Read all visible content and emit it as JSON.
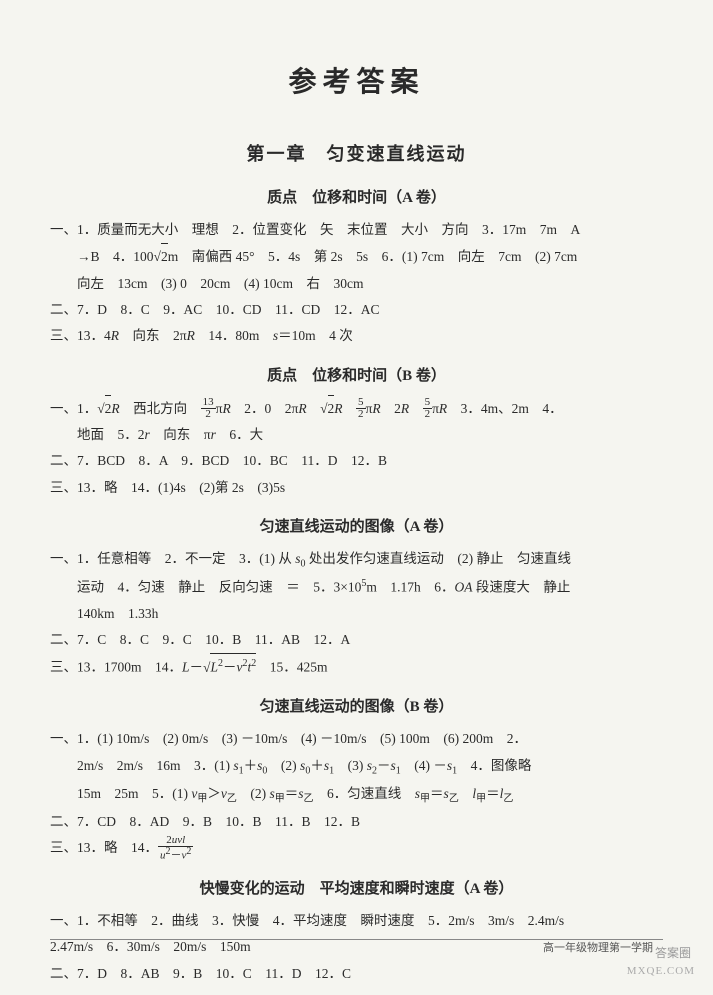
{
  "page_title": "参考答案",
  "chapter_title": "第一章　匀变速直线运动",
  "sections": [
    {
      "title": "质点　位移和时间（A 卷）",
      "lines": [
        "一、1．质量而无大小　理想　2．位置变化　矢　末位置　大小　方向　3．17m　7m　A",
        "→B　4．100√2m　南偏西 45°　5．4s　第 2s　5s　6．(1) 7cm　向左　7cm　(2) 7cm",
        "向左　13cm　(3) 0　20cm　(4) 10cm　右　30cm",
        "二、7．D　8．C　9．AC　10．CD　11．CD　12．AC",
        "三、13．4R　向东　2πR　14．80m　s＝10m　4 次"
      ]
    },
    {
      "title": "质点　位移和时间（B 卷）",
      "lines": [
        "一、1．√2R　西北方向　(13/2)πR　2．0　2πR　√2R　(5/2)πR　2R　(5/2)πR　3．4m、2m　4．",
        "地面　5．2r　向东　πr　6．大",
        "二、7．BCD　8．A　9．BCD　10．BC　11．D　12．B",
        "三、13．略　14．(1)4s　(2)第 2s　(3)5s"
      ]
    },
    {
      "title": "匀速直线运动的图像（A 卷）",
      "lines": [
        "一、1．任意相等　2．不一定　3．(1) 从 s₀ 处出发作匀速直线运动　(2) 静止　匀速直线",
        "运动　4．匀速　静止　反向匀速　＝　5．3×10⁵m　1.17h　6．OA 段速度大　静止",
        "140km　1.33h",
        "二、7．C　8．C　9．C　10．B　11．AB　12．A",
        "三、13．1700m　14．L－√(L²－v²t²)　15．425m"
      ]
    },
    {
      "title": "匀速直线运动的图像（B 卷）",
      "lines": [
        "一、1．(1) 10m/s　(2) 0m/s　(3) －10m/s　(4) －10m/s　(5) 100m　(6) 200m　2．",
        "2m/s　2m/s　16m　3．(1) s₁＋s₀　(2) s₀＋s₁　(3) s₂－s₁　(4) －s₁　4．图像略",
        "15m　25m　5．(1) v甲＞v乙　(2) s甲＝s乙　6．匀速直线　s甲＝s乙　l甲＝l乙",
        "二、7．CD　8．AD　9．B　10．B　11．B　12．B",
        "三、13．略　14．2uvl／(u²－v²)"
      ]
    },
    {
      "title": "快慢变化的运动　平均速度和瞬时速度（A 卷）",
      "lines": [
        "一、1．不相等　2．曲线　3．快慢　4．平均速度　瞬时速度　5．2m/s　3m/s　2.4m/s",
        "2.47m/s　6．30m/s　20m/s　150m",
        "二、7．D　8．AB　9．B　10．C　11．D　12．C"
      ]
    }
  ],
  "footer_text": "高一年级物理第一学期",
  "watermark_text": "MXQE.COM",
  "colors": {
    "bg": "#f5f5f0",
    "text": "#2a2a2a",
    "line": "#888888",
    "wm": "#aaaaaa"
  },
  "typography": {
    "title_fontsize": 28,
    "chapter_fontsize": 18,
    "section_fontsize": 15,
    "body_fontsize": 13.5,
    "line_height": 1.95,
    "font_family": "SimSun"
  }
}
